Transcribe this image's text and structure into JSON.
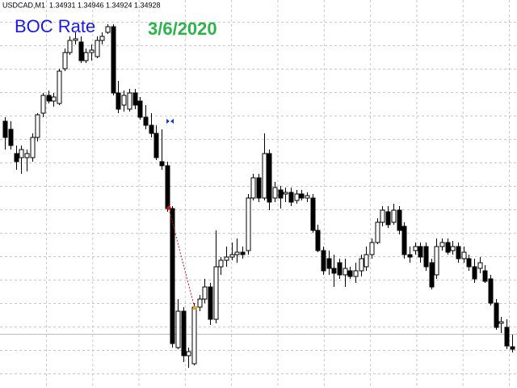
{
  "chart_data": {
    "type": "candlestick",
    "symbol": "USDCAD,M1",
    "annotations": [
      "BOC Rate",
      "3/6/2020"
    ],
    "ylim": [
      1.3488,
      1.3536
    ],
    "grid": true,
    "colors": {
      "up_fill": "#ffffff",
      "down_fill": "#000000",
      "outline": "#000000",
      "annotation_1": "#1a1ae0",
      "annotation_2": "#2db34a"
    },
    "ohlc": [
      [
        1.3521,
        1.35215,
        1.35175,
        1.3519
      ],
      [
        1.352,
        1.3521,
        1.35175,
        1.3518
      ],
      [
        1.3517,
        1.3518,
        1.3515,
        1.3516
      ],
      [
        1.35165,
        1.3518,
        1.35145,
        1.35175
      ],
      [
        1.35165,
        1.35175,
        1.35148,
        1.3517
      ],
      [
        1.35165,
        1.35195,
        1.3516,
        1.3519
      ],
      [
        1.3519,
        1.3522,
        1.35185,
        1.35218
      ],
      [
        1.3522,
        1.35245,
        1.35215,
        1.35242
      ],
      [
        1.35242,
        1.35248,
        1.35232,
        1.35235
      ],
      [
        1.35235,
        1.35245,
        1.35228,
        1.3524
      ],
      [
        1.35232,
        1.35275,
        1.3523,
        1.35272
      ],
      [
        1.35275,
        1.353,
        1.35272,
        1.35295
      ],
      [
        1.35295,
        1.35315,
        1.35292,
        1.3531
      ],
      [
        1.3531,
        1.3532,
        1.35305,
        1.35312
      ],
      [
        1.35308,
        1.35315,
        1.35282,
        1.35285
      ],
      [
        1.35285,
        1.353,
        1.35282,
        1.35295
      ],
      [
        1.35295,
        1.35305,
        1.35285,
        1.35298
      ],
      [
        1.3529,
        1.35315,
        1.35288,
        1.3531
      ],
      [
        1.3531,
        1.3532,
        1.35305,
        1.35315
      ],
      [
        1.3532,
        1.3533,
        1.35318,
        1.35327
      ],
      [
        1.35327,
        1.3533,
        1.35242,
        1.35245
      ],
      [
        1.35245,
        1.3526,
        1.3522,
        1.35225
      ],
      [
        1.3523,
        1.35248,
        1.35222,
        1.35242
      ],
      [
        1.35225,
        1.3525,
        1.35222,
        1.35245
      ],
      [
        1.35245,
        1.3525,
        1.35225,
        1.3523
      ],
      [
        1.35235,
        1.3524,
        1.35212,
        1.35215
      ],
      [
        1.35215,
        1.3523,
        1.352,
        1.35205
      ],
      [
        1.35205,
        1.3522,
        1.3519,
        1.35195
      ],
      [
        1.35195,
        1.35205,
        1.35162,
        1.35165
      ],
      [
        1.3516,
        1.352,
        1.3515,
        1.35155
      ],
      [
        1.35155,
        1.3516,
        1.35098,
        1.35102
      ],
      [
        1.35102,
        1.35105,
        1.3493,
        1.34935
      ],
      [
        1.3493,
        1.3499,
        1.34928,
        1.34975
      ],
      [
        1.34975,
        1.3498,
        1.34912,
        1.3492
      ],
      [
        1.3492,
        1.3493,
        1.34905,
        1.34925
      ],
      [
        1.3491,
        1.34985,
        1.34908,
        1.3498
      ],
      [
        1.3498,
        1.34995,
        1.34975,
        1.3499
      ],
      [
        1.3499,
        1.35015,
        1.34985,
        1.35005
      ],
      [
        1.35005,
        1.3501,
        1.34958,
        1.34965
      ],
      [
        1.34965,
        1.35075,
        1.3496,
        1.3503
      ],
      [
        1.3503,
        1.35042,
        1.3502,
        1.35038
      ],
      [
        1.35038,
        1.35055,
        1.3503,
        1.35042
      ],
      [
        1.35042,
        1.3506,
        1.35038,
        1.35045
      ],
      [
        1.35045,
        1.35065,
        1.35035,
        1.35048
      ],
      [
        1.35048,
        1.35055,
        1.3504,
        1.35045
      ],
      [
        1.3505,
        1.3512,
        1.35045,
        1.35115
      ],
      [
        1.35115,
        1.35145,
        1.35112,
        1.3514
      ],
      [
        1.3514,
        1.35145,
        1.3511,
        1.35115
      ],
      [
        1.35115,
        1.35195,
        1.35112,
        1.3517
      ],
      [
        1.3517,
        1.35175,
        1.351,
        1.3511
      ],
      [
        1.35115,
        1.35135,
        1.3511,
        1.35128
      ],
      [
        1.35125,
        1.3513,
        1.35102,
        1.35115
      ],
      [
        1.3512,
        1.35128,
        1.3511,
        1.35122
      ],
      [
        1.35122,
        1.35128,
        1.35105,
        1.3511
      ],
      [
        1.35112,
        1.35125,
        1.35108,
        1.3512
      ],
      [
        1.3512,
        1.35125,
        1.35112,
        1.35115
      ],
      [
        1.35115,
        1.35122,
        1.3511,
        1.35118
      ],
      [
        1.35115,
        1.3512,
        1.35072,
        1.35075
      ],
      [
        1.35075,
        1.35082,
        1.35048,
        1.3505
      ],
      [
        1.3505,
        1.35055,
        1.3502,
        1.35025
      ],
      [
        1.3504,
        1.3505,
        1.3502,
        1.35028
      ],
      [
        1.35028,
        1.35045,
        1.35005,
        1.35022
      ],
      [
        1.35035,
        1.3504,
        1.35015,
        1.3502
      ],
      [
        1.3502,
        1.3504,
        1.35005,
        1.35028
      ],
      [
        1.35025,
        1.3503,
        1.35015,
        1.35018
      ],
      [
        1.35018,
        1.35035,
        1.3501,
        1.35025
      ],
      [
        1.35025,
        1.35045,
        1.35018,
        1.3504
      ],
      [
        1.3503,
        1.35055,
        1.35025,
        1.35045
      ],
      [
        1.35045,
        1.35065,
        1.3504,
        1.3506
      ],
      [
        1.3506,
        1.3509,
        1.35058,
        1.35085
      ],
      [
        1.35085,
        1.35105,
        1.3508,
        1.351
      ],
      [
        1.35098,
        1.35105,
        1.35078,
        1.35082
      ],
      [
        1.35085,
        1.35108,
        1.35082,
        1.351
      ],
      [
        1.351,
        1.35105,
        1.3507,
        1.35075
      ],
      [
        1.3508,
        1.35085,
        1.3504,
        1.35045
      ],
      [
        1.35045,
        1.35055,
        1.35035,
        1.35042
      ],
      [
        1.3505,
        1.3506,
        1.35045,
        1.35055
      ],
      [
        1.35055,
        1.3506,
        1.35035,
        1.35042
      ],
      [
        1.35055,
        1.3506,
        1.35025,
        1.3503
      ],
      [
        1.35035,
        1.3504,
        1.35002,
        1.35005
      ],
      [
        1.3502,
        1.35065,
        1.35015,
        1.35055
      ],
      [
        1.35055,
        1.35065,
        1.3505,
        1.3506
      ],
      [
        1.3506,
        1.35065,
        1.35045,
        1.35048
      ],
      [
        1.3505,
        1.35062,
        1.35045,
        1.35055
      ],
      [
        1.35055,
        1.3506,
        1.35035,
        1.3504
      ],
      [
        1.3504,
        1.35055,
        1.35035,
        1.35048
      ],
      [
        1.3504,
        1.35045,
        1.35025,
        1.3503
      ],
      [
        1.3503,
        1.3504,
        1.3501,
        1.35015
      ],
      [
        1.35028,
        1.35042,
        1.35022,
        1.35035
      ],
      [
        1.35025,
        1.35032,
        1.3501,
        1.35012
      ],
      [
        1.35015,
        1.3502,
        1.34982,
        1.34985
      ],
      [
        1.34985,
        1.3499,
        1.34952,
        1.34955
      ],
      [
        1.3496,
        1.34968,
        1.34948,
        1.34962
      ],
      [
        1.34955,
        1.34965,
        1.34928,
        1.34932
      ],
      [
        1.34931,
        1.34946,
        1.34924,
        1.34928
      ]
    ]
  }
}
